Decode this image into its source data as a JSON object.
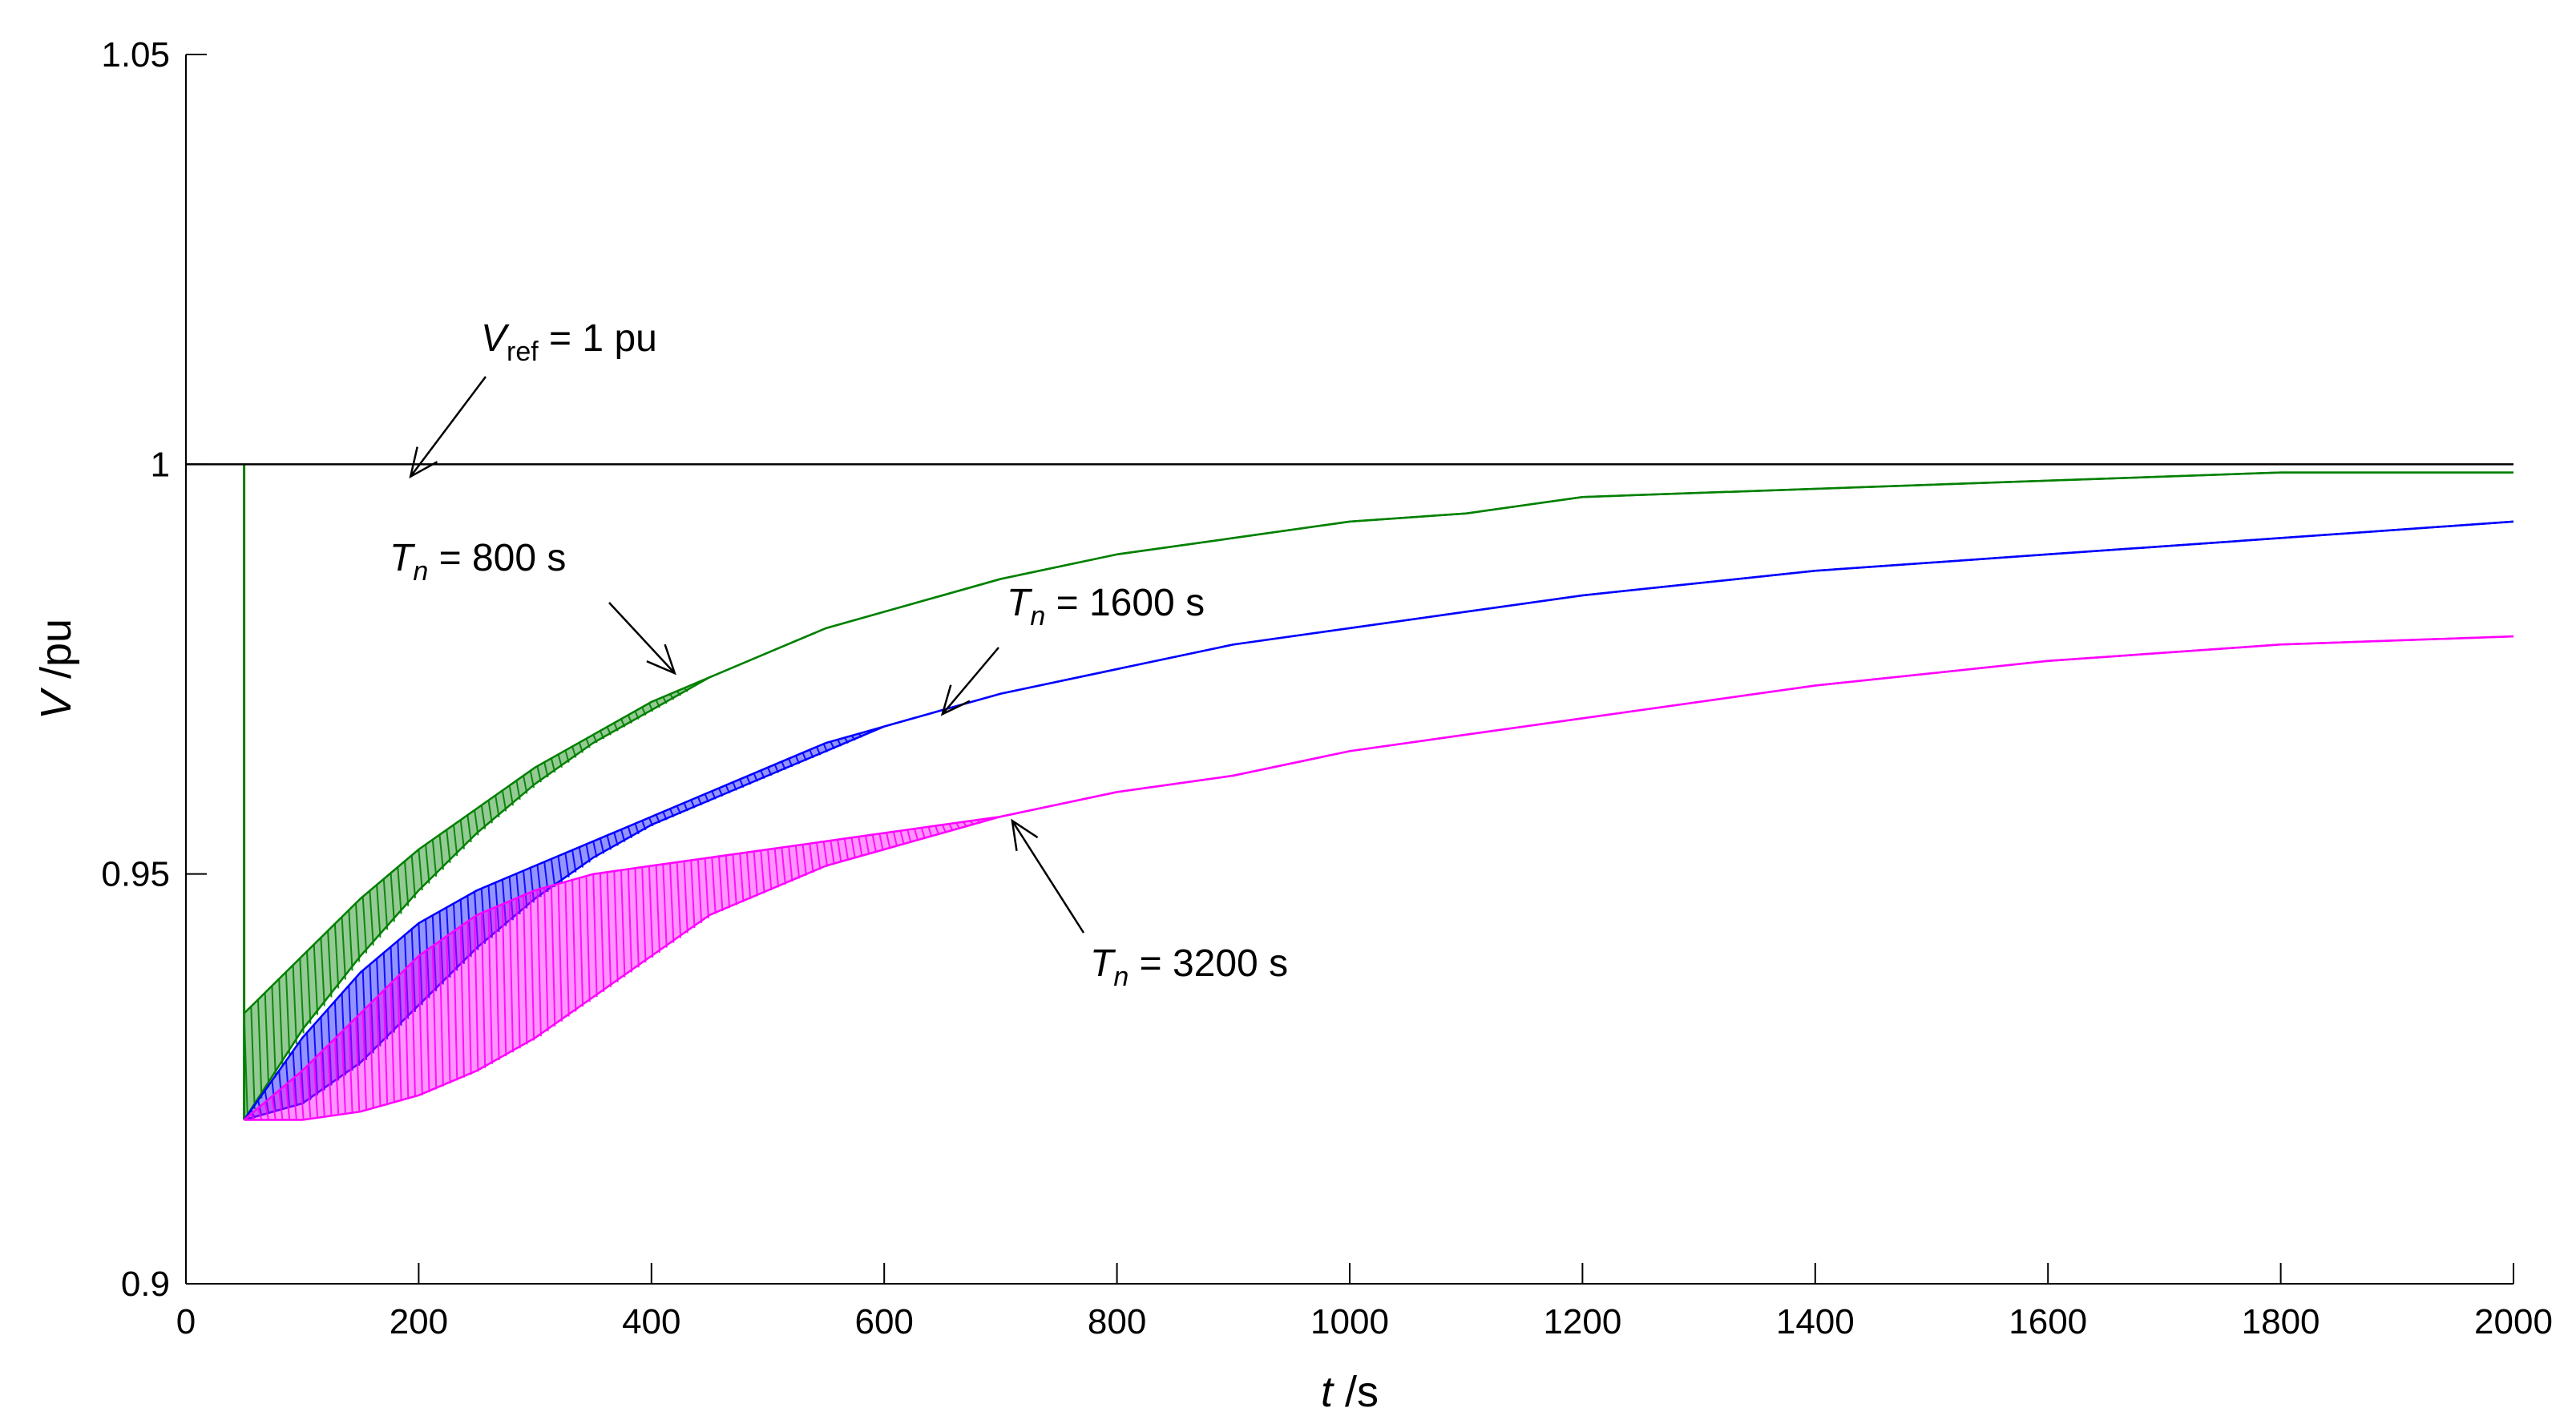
{
  "chart_data": {
    "type": "line",
    "xlabel": {
      "var": "t",
      "unit": " /s"
    },
    "ylabel": {
      "var": "V",
      "unit": " /pu"
    },
    "xlim": [
      0,
      2000
    ],
    "ylim": [
      0.9,
      1.05
    ],
    "xticks": [
      0,
      200,
      400,
      600,
      800,
      1000,
      1200,
      1400,
      1600,
      1800,
      2000
    ],
    "yticks": [
      0.9,
      0.95,
      1,
      1.05
    ],
    "ytick_labels": [
      "0.9",
      "0.95",
      "1",
      "1.05"
    ],
    "grid": false,
    "colors": {
      "ref": "#000000",
      "green": "#008000",
      "blue": "#0000ff",
      "magenta": "#ff00ff"
    },
    "series": [
      {
        "key": "vref",
        "color": "#000000",
        "x": [
          0,
          2000
        ],
        "y": [
          1.0,
          1.0
        ]
      },
      {
        "key": "tn800",
        "color": "#008000",
        "x": [
          50,
          100,
          150,
          200,
          250,
          300,
          350,
          400,
          450,
          500,
          550,
          600,
          650,
          700,
          800,
          900,
          1000,
          1100,
          1200,
          1400,
          1600,
          1800,
          2000
        ],
        "upper": [
          0.933,
          0.94,
          0.947,
          0.953,
          0.958,
          0.963,
          0.967,
          0.971,
          0.974,
          0.977,
          0.98,
          0.982,
          0.984,
          0.986,
          0.989,
          0.991,
          0.993,
          0.994,
          0.996,
          0.997,
          0.998,
          0.999,
          0.999
        ],
        "lower": [
          0.92,
          0.931,
          0.94,
          0.948,
          0.955,
          0.961,
          0.966,
          0.97,
          0.974,
          0.977,
          0.98,
          0.982,
          0.984,
          0.986,
          0.989,
          0.991,
          0.993,
          0.994,
          0.996,
          0.997,
          0.998,
          0.999,
          0.999
        ]
      },
      {
        "key": "tn1600",
        "color": "#0000ff",
        "x": [
          50,
          100,
          150,
          200,
          250,
          300,
          350,
          400,
          450,
          500,
          550,
          600,
          650,
          700,
          800,
          900,
          1000,
          1100,
          1200,
          1400,
          1600,
          1800,
          2000
        ],
        "upper": [
          0.92,
          0.93,
          0.938,
          0.944,
          0.948,
          0.951,
          0.954,
          0.957,
          0.96,
          0.963,
          0.966,
          0.968,
          0.97,
          0.972,
          0.975,
          0.978,
          0.98,
          0.982,
          0.984,
          0.987,
          0.989,
          0.991,
          0.993
        ],
        "lower": [
          0.92,
          0.922,
          0.927,
          0.934,
          0.941,
          0.947,
          0.952,
          0.956,
          0.959,
          0.962,
          0.965,
          0.968,
          0.97,
          0.972,
          0.975,
          0.978,
          0.98,
          0.982,
          0.984,
          0.987,
          0.989,
          0.991,
          0.993
        ]
      },
      {
        "key": "tn3200",
        "color": "#ff00ff",
        "x": [
          50,
          100,
          150,
          200,
          250,
          300,
          350,
          400,
          450,
          500,
          550,
          600,
          650,
          700,
          800,
          900,
          1000,
          1100,
          1200,
          1400,
          1600,
          1800,
          2000
        ],
        "upper": [
          0.92,
          0.926,
          0.933,
          0.94,
          0.945,
          0.948,
          0.95,
          0.951,
          0.952,
          0.953,
          0.954,
          0.955,
          0.956,
          0.957,
          0.96,
          0.962,
          0.965,
          0.967,
          0.969,
          0.973,
          0.976,
          0.978,
          0.979
        ],
        "lower": [
          0.92,
          0.92,
          0.921,
          0.923,
          0.926,
          0.93,
          0.935,
          0.94,
          0.945,
          0.948,
          0.951,
          0.953,
          0.955,
          0.957,
          0.96,
          0.962,
          0.965,
          0.967,
          0.969,
          0.973,
          0.976,
          0.978,
          0.979
        ]
      }
    ],
    "drop": {
      "x": 50,
      "from": 1.0,
      "to": 0.92
    },
    "annotations": [
      {
        "key": "vref",
        "var": "V",
        "sub": "ref",
        "text": " = 1 pu",
        "target": [
          193,
          0.9985
        ]
      },
      {
        "key": "tn800",
        "var": "T",
        "sub": "n",
        "text": " = 800 s",
        "target": [
          420,
          0.9745
        ]
      },
      {
        "key": "tn1600",
        "var": "T",
        "sub": "n",
        "text": " = 1600 s",
        "target": [
          650,
          0.9695
        ]
      },
      {
        "key": "tn3200",
        "var": "T",
        "sub": "n",
        "text": " = 3200 s",
        "target": [
          710,
          0.9565
        ]
      }
    ]
  }
}
